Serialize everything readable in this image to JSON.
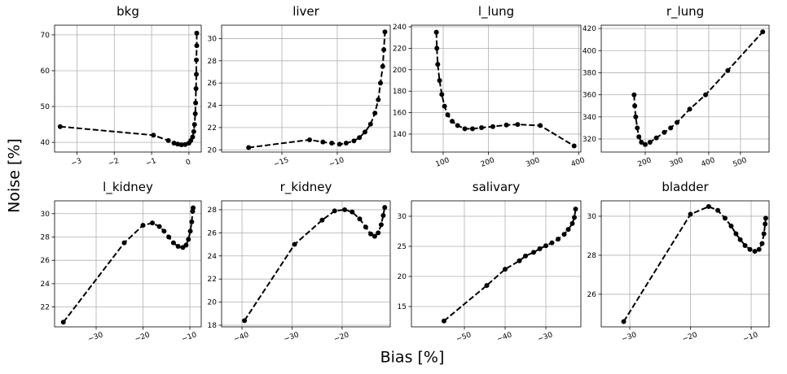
{
  "xlabel": "Bias [%]",
  "ylabel": "Noise [%]",
  "chart_data": [
    {
      "type": "line",
      "title": "bkg",
      "color": "#000000",
      "grid": true,
      "linestyle": "dashed",
      "x": [
        -3.45,
        -0.95,
        -0.55,
        -0.4,
        -0.3,
        -0.2,
        -0.1,
        0,
        0.05,
        0.1,
        0.13,
        0.15,
        0.17,
        0.18,
        0.19,
        0.2,
        0.2,
        0.21,
        0.21
      ],
      "values": [
        44.4,
        42,
        40.5,
        39.8,
        39.5,
        39.3,
        39.4,
        39.8,
        40.5,
        41.5,
        43,
        45,
        48,
        51,
        55,
        59,
        63,
        67,
        70.5
      ],
      "xlim": [
        -3.6,
        0.33
      ],
      "ylim": [
        37.3,
        72.7
      ],
      "xticks": [
        {
          "value": -3,
          "label": "−3"
        },
        {
          "value": -2,
          "label": "−2"
        },
        {
          "value": -1,
          "label": "−1"
        },
        0
      ],
      "yticks": [
        40,
        50,
        60,
        70
      ]
    },
    {
      "type": "line",
      "title": "liver",
      "color": "#000000",
      "grid": true,
      "linestyle": "dashed",
      "x": [
        -18,
        -12.5,
        -11.3,
        -10.5,
        -9.8,
        -9.2,
        -8.5,
        -8,
        -7.5,
        -7,
        -6.6,
        -6.3,
        -6.1,
        -5.9,
        -5.8,
        -5.7
      ],
      "values": [
        20.2,
        20.9,
        20.7,
        20.6,
        20.5,
        20.6,
        20.8,
        21.1,
        21.6,
        22.3,
        23.3,
        24.5,
        26,
        27.5,
        29,
        30.6
      ],
      "xlim": [
        -20.44,
        -5.22
      ],
      "ylim": [
        19.8,
        31.2
      ],
      "xticks": [
        {
          "value": -15,
          "label": "−15"
        },
        {
          "value": -10,
          "label": "−10"
        }
      ],
      "yticks": [
        20,
        22,
        24,
        26,
        28,
        30
      ]
    },
    {
      "type": "line",
      "title": "l_lung",
      "color": "#000000",
      "grid": true,
      "linestyle": "dashed",
      "x": [
        85,
        86,
        88,
        92,
        97,
        103,
        110,
        120,
        132,
        148,
        165,
        185,
        210,
        240,
        265,
        315,
        390
      ],
      "values": [
        235,
        220,
        205,
        190,
        177,
        166,
        158,
        152,
        148,
        145,
        145,
        146,
        147,
        148.5,
        149,
        148,
        129
      ],
      "xlim": [
        29.7,
        405
      ],
      "ylim": [
        123.3,
        241.5
      ],
      "xticks": [
        100,
        200,
        300,
        400
      ],
      "yticks": [
        140,
        160,
        180,
        200,
        220,
        240
      ]
    },
    {
      "type": "line",
      "title": "r_lung",
      "color": "#000000",
      "grid": true,
      "linestyle": "dashed",
      "x": [
        165,
        167,
        170,
        175,
        180,
        188,
        200,
        215,
        235,
        260,
        280,
        300,
        340,
        390,
        460,
        570
      ],
      "values": [
        360,
        350,
        340,
        330,
        322,
        317,
        315,
        317,
        321,
        326,
        330,
        335,
        347,
        360,
        382,
        417
      ],
      "xlim": [
        61.5,
        590
      ],
      "ylim": [
        308.2,
        423
      ],
      "xticks": [
        200,
        300,
        400,
        500
      ],
      "yticks": [
        320,
        340,
        360,
        380,
        400,
        420
      ]
    },
    {
      "type": "line",
      "title": "l_kidney",
      "color": "#000000",
      "grid": true,
      "linestyle": "dashed",
      "x": [
        -37,
        -24,
        -20,
        -18,
        -16.5,
        -15.5,
        -14.5,
        -13.5,
        -12.5,
        -11.5,
        -10.8,
        -10.3,
        -9.9,
        -9.6,
        -9.4,
        -9.3
      ],
      "values": [
        20.7,
        27.5,
        29,
        29.2,
        28.9,
        28.5,
        28,
        27.5,
        27.2,
        27.1,
        27.3,
        27.8,
        28.5,
        29.3,
        30.2,
        30.5
      ],
      "xlim": [
        -38.87,
        -7.57
      ],
      "ylim": [
        20.3,
        31.1
      ],
      "xticks": [
        {
          "value": -30,
          "label": "−30"
        },
        {
          "value": -20,
          "label": "−20"
        },
        {
          "value": -10,
          "label": "−10"
        }
      ],
      "yticks": [
        22,
        24,
        26,
        28,
        30
      ]
    },
    {
      "type": "line",
      "title": "r_kidney",
      "color": "#000000",
      "grid": true,
      "linestyle": "dashed",
      "x": [
        -39.5,
        -29.5,
        -24,
        -21.5,
        -19.5,
        -18,
        -16.5,
        -15.3,
        -14.3,
        -13.5,
        -12.8,
        -12.2,
        -11.8,
        -11.5
      ],
      "values": [
        18.4,
        25,
        27.1,
        27.9,
        28,
        27.8,
        27.2,
        26.5,
        25.9,
        25.7,
        26,
        26.7,
        27.5,
        28.2
      ],
      "xlim": [
        -44.07,
        -10.4
      ],
      "ylim": [
        17.86,
        28.77
      ],
      "xticks": [
        {
          "value": -40,
          "label": "−40"
        },
        {
          "value": -30,
          "label": "−30"
        },
        {
          "value": -20,
          "label": "−20"
        }
      ],
      "yticks": [
        18,
        20,
        22,
        24,
        26,
        28
      ]
    },
    {
      "type": "line",
      "title": "salivary",
      "color": "#000000",
      "grid": true,
      "linestyle": "dashed",
      "x": [
        -55,
        -44.5,
        -40,
        -36.5,
        -35,
        -33,
        -31.5,
        -30,
        -28.5,
        -27,
        -25.5,
        -24.5,
        -23.5,
        -23,
        -22.7
      ],
      "values": [
        12.6,
        18.5,
        21.2,
        22.6,
        23.4,
        24,
        24.6,
        25.1,
        25.6,
        26.2,
        27,
        27.8,
        28.8,
        29.8,
        31.2
      ],
      "xlim": [
        -63,
        -21.4
      ],
      "ylim": [
        11.62,
        32.57
      ],
      "xticks": [
        {
          "value": -50,
          "label": "−50"
        },
        {
          "value": -40,
          "label": "−40"
        },
        {
          "value": -30,
          "label": "−30"
        }
      ],
      "yticks": [
        15,
        20,
        25,
        30
      ]
    },
    {
      "type": "line",
      "title": "bladder",
      "color": "#000000",
      "grid": true,
      "linestyle": "dashed",
      "x": [
        -31,
        -20,
        -17,
        -15.5,
        -14.3,
        -13.3,
        -12.5,
        -11.8,
        -11,
        -10.2,
        -9.4,
        -8.7,
        -8.2,
        -7.9,
        -7.7,
        -7.6
      ],
      "values": [
        24.6,
        30.1,
        30.5,
        30.3,
        29.9,
        29.5,
        29.1,
        28.8,
        28.5,
        28.3,
        28.2,
        28.3,
        28.6,
        29.1,
        29.6,
        29.9
      ],
      "xlim": [
        -34.7,
        -7.05
      ],
      "ylim": [
        24.33,
        30.79
      ],
      "xticks": [
        {
          "value": -30,
          "label": "−30"
        },
        {
          "value": -20,
          "label": "−20"
        },
        {
          "value": -10,
          "label": "−10"
        }
      ],
      "yticks": [
        26,
        28,
        30
      ]
    }
  ]
}
